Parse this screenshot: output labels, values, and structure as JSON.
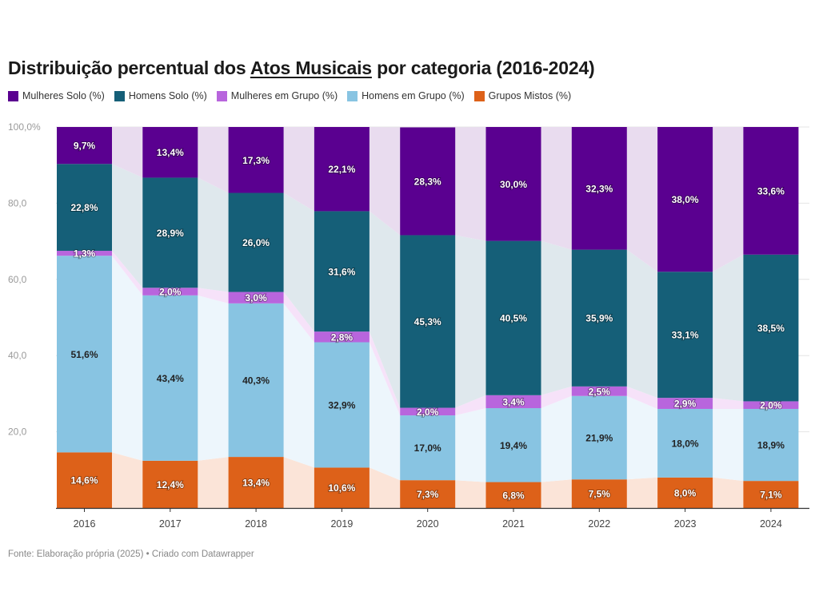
{
  "title": {
    "before": "Distribuição percentual dos ",
    "highlight": "Atos Musicais",
    "after": " por categoria (2016-2024)"
  },
  "footer": "Fonte: Elaboração própria (2025) • Criado com Datawrapper",
  "chart_data": {
    "type": "bar",
    "stacked": true,
    "title": "Distribuição percentual dos Atos Musicais por categoria (2016-2024)",
    "xlabel": "",
    "ylabel": "",
    "ylim": [
      0,
      100
    ],
    "ytick_labels": [
      "20,0",
      "40,0",
      "60,0",
      "80,0",
      "100,0%"
    ],
    "yticks": [
      20,
      40,
      60,
      80,
      100
    ],
    "categories": [
      "2016",
      "2017",
      "2018",
      "2019",
      "2020",
      "2021",
      "2022",
      "2023",
      "2024"
    ],
    "legend_position": "top-left",
    "series": [
      {
        "name": "Grupos Mistos (%)",
        "color": "#dd6119",
        "label_color": "#ffffff",
        "band_color": "#fbe4d8",
        "values": [
          14.6,
          12.4,
          13.4,
          10.6,
          7.3,
          6.8,
          7.5,
          8.0,
          7.1
        ],
        "labels": [
          "14,6%",
          "12,4%",
          "13,4%",
          "10,6%",
          "7,3%",
          "6,8%",
          "7,5%",
          "8,0%",
          "7,1%"
        ]
      },
      {
        "name": "Homens em Grupo (%)",
        "color": "#88c4e2",
        "label_color": "#222222",
        "band_color": "#edf6fc",
        "values": [
          51.6,
          43.4,
          40.3,
          32.9,
          17.0,
          19.4,
          21.9,
          18.0,
          18.9
        ],
        "labels": [
          "51,6%",
          "43,4%",
          "40,3%",
          "32,9%",
          "17,0%",
          "19,4%",
          "21,9%",
          "18,0%",
          "18,9%"
        ]
      },
      {
        "name": "Mulheres em Grupo (%)",
        "color": "#b865dd",
        "label_color": "#ffffff",
        "band_color": "#f6e2f9",
        "values": [
          1.3,
          2.0,
          3.0,
          2.8,
          2.0,
          3.4,
          2.5,
          2.9,
          2.0
        ],
        "labels": [
          "1,3%",
          "2,0%",
          "3,0%",
          "2,8%",
          "2,0%",
          "3,4%",
          "2,5%",
          "2,9%",
          "2,0%"
        ]
      },
      {
        "name": "Homens Solo (%)",
        "color": "#155f78",
        "label_color": "#ffffff",
        "band_color": "#dfe8ed",
        "values": [
          22.8,
          28.9,
          26.0,
          31.6,
          45.3,
          40.5,
          35.9,
          33.1,
          38.5
        ],
        "labels": [
          "22,8%",
          "28,9%",
          "26,0%",
          "31,6%",
          "45,3%",
          "40,5%",
          "35,9%",
          "33,1%",
          "38,5%"
        ]
      },
      {
        "name": "Mulheres Solo (%)",
        "color": "#5a0090",
        "label_color": "#ffffff",
        "band_color": "#e9dcef",
        "values": [
          9.7,
          13.4,
          17.3,
          22.1,
          28.3,
          30.0,
          32.3,
          38.0,
          33.6
        ],
        "labels": [
          "9,7%",
          "13,4%",
          "17,3%",
          "22,1%",
          "28,3%",
          "30,0%",
          "32,3%",
          "38,0%",
          "33,6%"
        ]
      }
    ],
    "legend_order": [
      "Mulheres Solo (%)",
      "Homens Solo (%)",
      "Mulheres em Grupo (%)",
      "Homens em Grupo (%)",
      "Grupos Mistos (%)"
    ]
  }
}
